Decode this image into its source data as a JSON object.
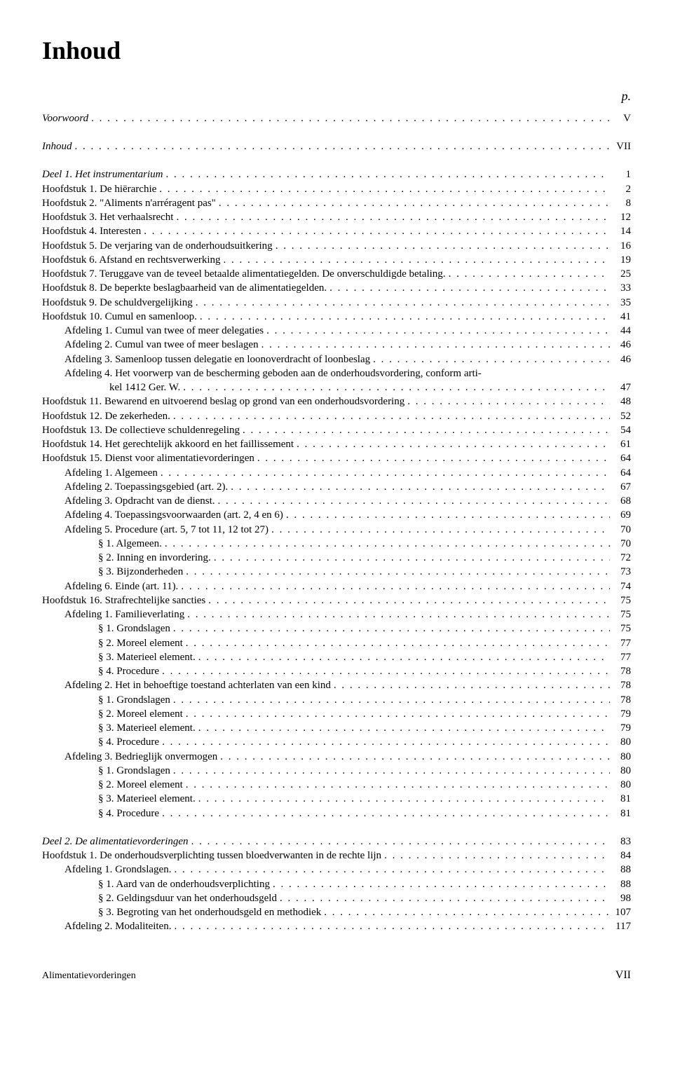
{
  "title": "Inhoud",
  "page_header_label": "p.",
  "entries": [
    {
      "text": "Voorwoord",
      "page": "V",
      "indent": 0,
      "italic": true
    },
    {
      "gap": "block"
    },
    {
      "text": "Inhoud",
      "page": "VII",
      "indent": 0,
      "italic": true
    },
    {
      "gap": "block"
    },
    {
      "text": "Deel 1. Het instrumentarium",
      "page": "1",
      "indent": 0,
      "italic": true
    },
    {
      "text": "Hoofdstuk 1. De hiërarchie",
      "page": "2",
      "indent": 0
    },
    {
      "text": "Hoofdstuk 2. \"Aliments n'arréragent pas\"",
      "page": "8",
      "indent": 0
    },
    {
      "text": "Hoofdstuk 3. Het verhaalsrecht",
      "page": "12",
      "indent": 0
    },
    {
      "text": "Hoofdstuk 4. Interesten",
      "page": "14",
      "indent": 0
    },
    {
      "text": "Hoofdstuk 5. De verjaring van de onderhoudsuitkering",
      "page": "16",
      "indent": 0
    },
    {
      "text": "Hoofdstuk 6. Afstand en rechtsverwerking",
      "page": "19",
      "indent": 0
    },
    {
      "text": "Hoofdstuk 7. Teruggave van de teveel betaalde alimentatiegelden. De onverschuldigde betaling.",
      "page": "25",
      "indent": 0
    },
    {
      "text": "Hoofdstuk 8. De beperkte beslagbaarheid van de alimentatiegelden.",
      "page": "33",
      "indent": 0
    },
    {
      "text": "Hoofdstuk 9. De schuldvergelijking",
      "page": "35",
      "indent": 0
    },
    {
      "text": "Hoofdstuk 10. Cumul en samenloop.",
      "page": "41",
      "indent": 0
    },
    {
      "text": "Afdeling 1. Cumul van twee of meer delegaties",
      "page": "44",
      "indent": 1
    },
    {
      "text": "Afdeling 2. Cumul van twee of meer beslagen",
      "page": "46",
      "indent": 1
    },
    {
      "text": "Afdeling 3. Samenloop tussen delegatie en loonoverdracht of loonbeslag",
      "page": "46",
      "indent": 1
    },
    {
      "text": "Afdeling 4. Het voorwerp van de bescherming geboden aan de onderhoudsvordering, conform arti-",
      "page": "",
      "indent": 1,
      "nodots": true
    },
    {
      "text": "kel 1412 Ger. W.",
      "page": "47",
      "indent": 3
    },
    {
      "text": "Hoofdstuk 11. Bewarend en uitvoerend beslag op grond van een onderhoudsvordering",
      "page": "48",
      "indent": 0
    },
    {
      "text": "Hoofdstuk 12. De zekerheden.",
      "page": "52",
      "indent": 0
    },
    {
      "text": "Hoofdstuk 13. De collectieve schuldenregeling",
      "page": "54",
      "indent": 0
    },
    {
      "text": "Hoofdstuk 14. Het gerechtelijk akkoord en het faillissement",
      "page": "61",
      "indent": 0
    },
    {
      "text": "Hoofdstuk 15. Dienst voor alimentatievorderingen",
      "page": "64",
      "indent": 0
    },
    {
      "text": "Afdeling 1. Algemeen",
      "page": "64",
      "indent": 1
    },
    {
      "text": "Afdeling 2. Toepassingsgebied (art. 2).",
      "page": "67",
      "indent": 1
    },
    {
      "text": "Afdeling 3. Opdracht van de dienst.",
      "page": "68",
      "indent": 1
    },
    {
      "text": "Afdeling 4. Toepassingsvoorwaarden (art. 2, 4 en 6)",
      "page": "69",
      "indent": 1
    },
    {
      "text": "Afdeling 5. Procedure (art. 5, 7 tot 11, 12 tot 27)",
      "page": "70",
      "indent": 1
    },
    {
      "text": "§ 1. Algemeen.",
      "page": "70",
      "indent": 2
    },
    {
      "text": "§ 2. Inning en invordering.",
      "page": "72",
      "indent": 2
    },
    {
      "text": "§ 3. Bijzonderheden",
      "page": "73",
      "indent": 2
    },
    {
      "text": "Afdeling 6. Einde (art. 11).",
      "page": "74",
      "indent": 1
    },
    {
      "text": "Hoofdstuk 16. Strafrechtelijke sancties",
      "page": "75",
      "indent": 0
    },
    {
      "text": "Afdeling 1. Familieverlating",
      "page": "75",
      "indent": 1
    },
    {
      "text": "§ 1. Grondslagen",
      "page": "75",
      "indent": 2
    },
    {
      "text": "§ 2. Moreel element",
      "page": "77",
      "indent": 2
    },
    {
      "text": "§ 3. Materieel element.",
      "page": "77",
      "indent": 2
    },
    {
      "text": "§ 4. Procedure",
      "page": "78",
      "indent": 2
    },
    {
      "text": "Afdeling 2. Het in behoeftige toestand achterlaten van een kind",
      "page": "78",
      "indent": 1
    },
    {
      "text": "§ 1. Grondslagen",
      "page": "78",
      "indent": 2
    },
    {
      "text": "§ 2. Moreel element",
      "page": "79",
      "indent": 2
    },
    {
      "text": "§ 3. Materieel element.",
      "page": "79",
      "indent": 2
    },
    {
      "text": "§ 4. Procedure",
      "page": "80",
      "indent": 2
    },
    {
      "text": "Afdeling 3. Bedrieglijk onvermogen",
      "page": "80",
      "indent": 1
    },
    {
      "text": "§ 1. Grondslagen",
      "page": "80",
      "indent": 2
    },
    {
      "text": "§ 2. Moreel element",
      "page": "80",
      "indent": 2
    },
    {
      "text": "§ 3. Materieel element.",
      "page": "81",
      "indent": 2
    },
    {
      "text": "§ 4. Procedure",
      "page": "81",
      "indent": 2
    },
    {
      "gap": "block"
    },
    {
      "text": "Deel 2. De alimentatievorderingen",
      "page": "83",
      "indent": 0,
      "italic": true
    },
    {
      "text": "Hoofdstuk 1. De onderhoudsverplichting tussen bloedverwanten in de rechte lijn",
      "page": "84",
      "indent": 0
    },
    {
      "text": "Afdeling 1. Grondslagen.",
      "page": "88",
      "indent": 1
    },
    {
      "text": "§ 1. Aard van de onderhoudsverplichting",
      "page": "88",
      "indent": 2
    },
    {
      "text": "§ 2. Geldingsduur van het onderhoudsgeld",
      "page": "98",
      "indent": 2
    },
    {
      "text": "§ 3. Begroting van het onderhoudsgeld en methodiek",
      "page": "107",
      "indent": 2
    },
    {
      "text": "Afdeling 2. Modaliteiten.",
      "page": "117",
      "indent": 1
    }
  ],
  "footer": {
    "left": "Alimentatievorderingen",
    "right": "VII"
  }
}
